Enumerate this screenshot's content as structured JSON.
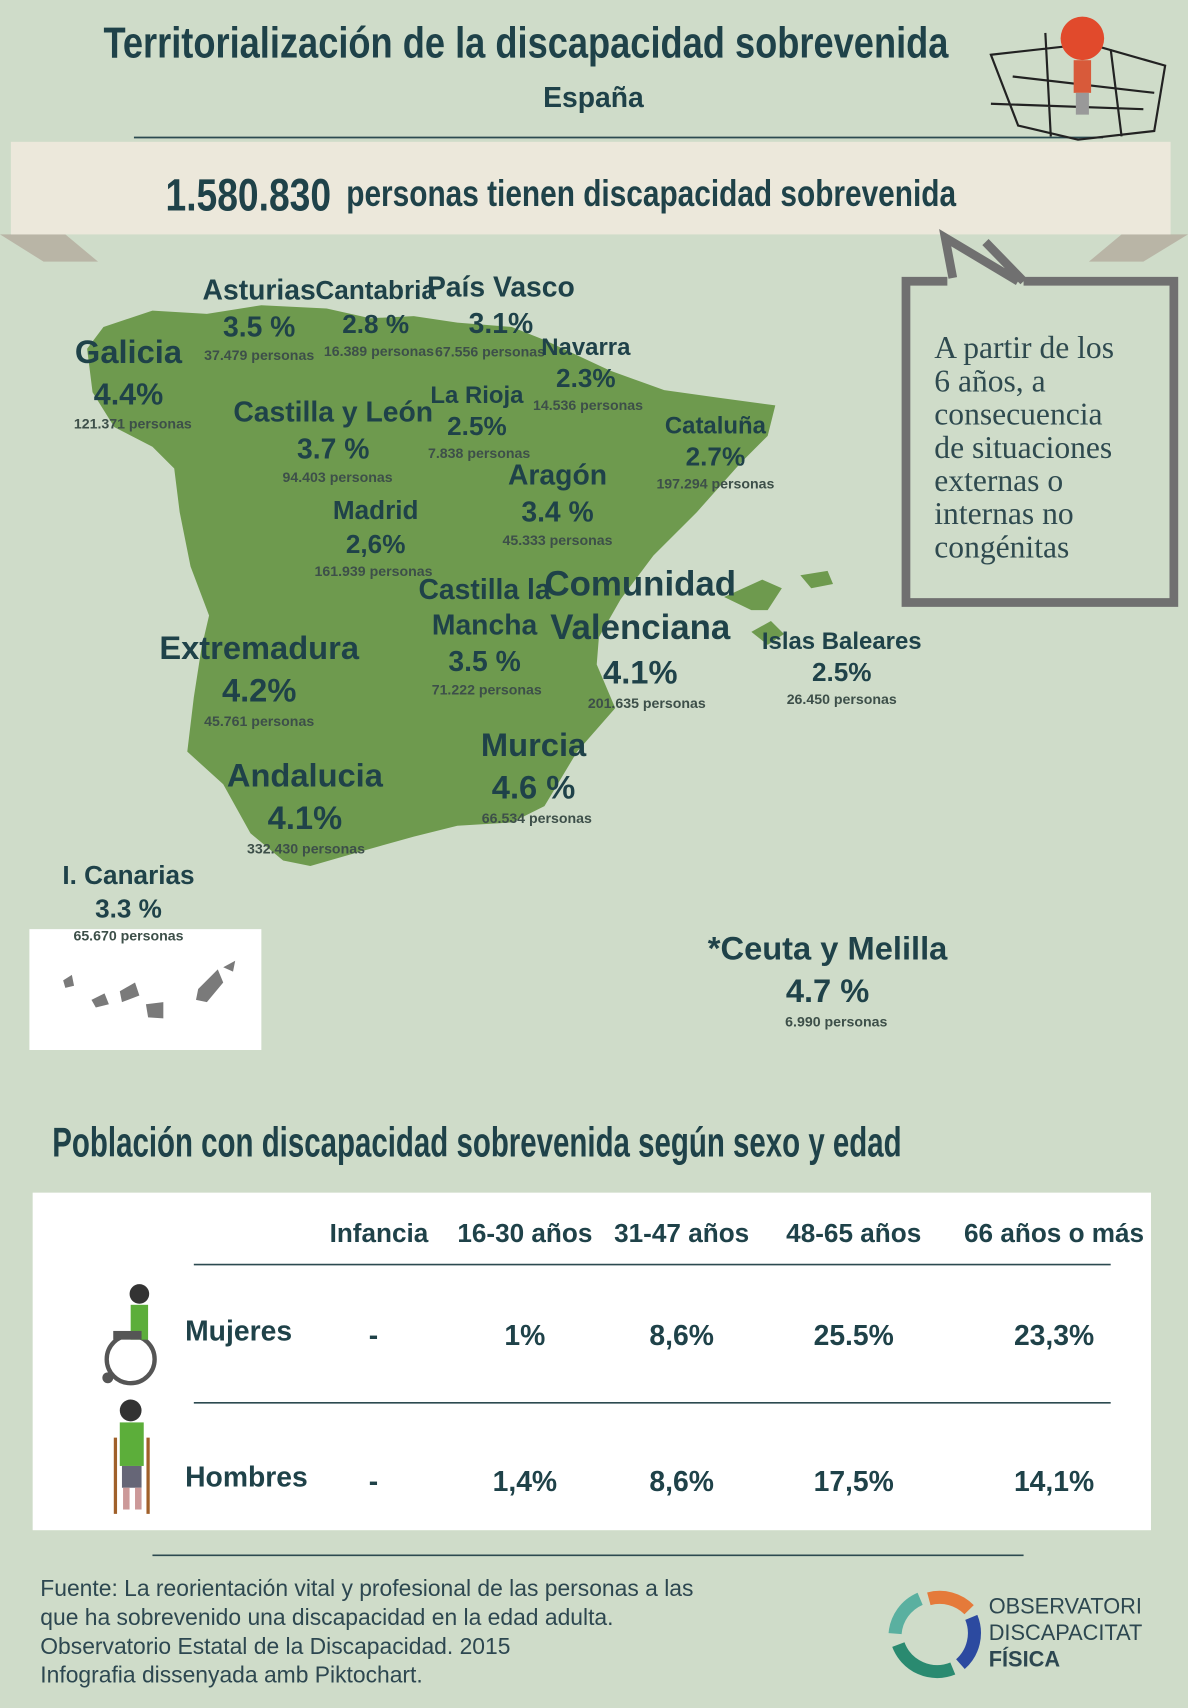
{
  "header": {
    "title": "Territorialización de la discapacidad sobrevenida",
    "subtitle": "España"
  },
  "banner": {
    "number": "1.580.830",
    "text": "personas tienen discapacidad sobrevenida"
  },
  "callout": {
    "lines": [
      "A partir de los",
      "6 años, a",
      "consecuencia",
      "de situaciones",
      "externas o",
      "internas no",
      "congénitas"
    ]
  },
  "regions": [
    {
      "name": [
        "Galicia"
      ],
      "percent": "4.4%",
      "persons": "121.371 personas"
    },
    {
      "name": [
        "Asturias"
      ],
      "percent": "3.5 %",
      "persons": "37.479 personas"
    },
    {
      "name": [
        "Cantabria"
      ],
      "percent": "2.8 %",
      "persons": "16.389 personas"
    },
    {
      "name": [
        "País Vasco"
      ],
      "percent": "3.1%",
      "persons": "67.556 personas"
    },
    {
      "name": [
        "Navarra"
      ],
      "percent": "2.3%",
      "persons": "14.536 personas"
    },
    {
      "name": [
        "La Rioja"
      ],
      "percent": "2.5%",
      "persons": "7.838 personas"
    },
    {
      "name": [
        "Castilla y León"
      ],
      "percent": "3.7 %",
      "persons": "94.403 personas"
    },
    {
      "name": [
        "Cataluña"
      ],
      "percent": "2.7%",
      "persons": "197.294 personas"
    },
    {
      "name": [
        "Aragón"
      ],
      "percent": "3.4 %",
      "persons": "45.333 personas"
    },
    {
      "name": [
        "Madrid"
      ],
      "percent": "2,6%",
      "persons": "161.939 personas"
    },
    {
      "name": [
        "Castilla la",
        "Mancha"
      ],
      "percent": "3.5 %",
      "persons": "71.222 personas"
    },
    {
      "name": [
        "Comunidad",
        "Valenciana"
      ],
      "percent": "4.1%",
      "persons": "201.635 personas"
    },
    {
      "name": [
        "Islas Baleares"
      ],
      "percent": "2.5%",
      "persons": "26.450 personas"
    },
    {
      "name": [
        "Extremadura"
      ],
      "percent": "4.2%",
      "persons": "45.761 personas"
    },
    {
      "name": [
        "Murcia"
      ],
      "percent": "4.6 %",
      "persons": "66.534 personas"
    },
    {
      "name": [
        "Andalucia"
      ],
      "percent": "4.1%",
      "persons": "332.430 personas"
    },
    {
      "name": [
        "I. Canarias"
      ],
      "percent": "3.3 %",
      "persons": "65.670 personas"
    },
    {
      "name": [
        "*Ceuta y Melilla"
      ],
      "percent": "4.7 %",
      "persons": "6.990 personas"
    }
  ],
  "table": {
    "title": "Población con discapacidad sobrevenida según sexo y edad",
    "headers": [
      "Infancia",
      "16-30 años",
      "31-47 años",
      "48-65 años",
      "66 años o más"
    ],
    "rows": [
      {
        "label": "Mujeres",
        "values": [
          "-",
          "1%",
          "8,6%",
          "25.5%",
          "23,3%"
        ]
      },
      {
        "label": "Hombres",
        "values": [
          "-",
          "1,4%",
          "8,6%",
          "17,5%",
          "14,1%"
        ]
      }
    ]
  },
  "footer": {
    "lines": [
      "Fuente: La reorientación vital y profesional de las personas a las",
      "que ha sobrevenido una discapacidad en la edad adulta.",
      "Observatorio Estatal de la Discapacidad. 2015",
      "Infografia dissenyada amb Piktochart."
    ]
  },
  "logo": {
    "lines": [
      "OBSERVATORI",
      "DISCAPACITAT",
      "FÍSICA"
    ]
  }
}
